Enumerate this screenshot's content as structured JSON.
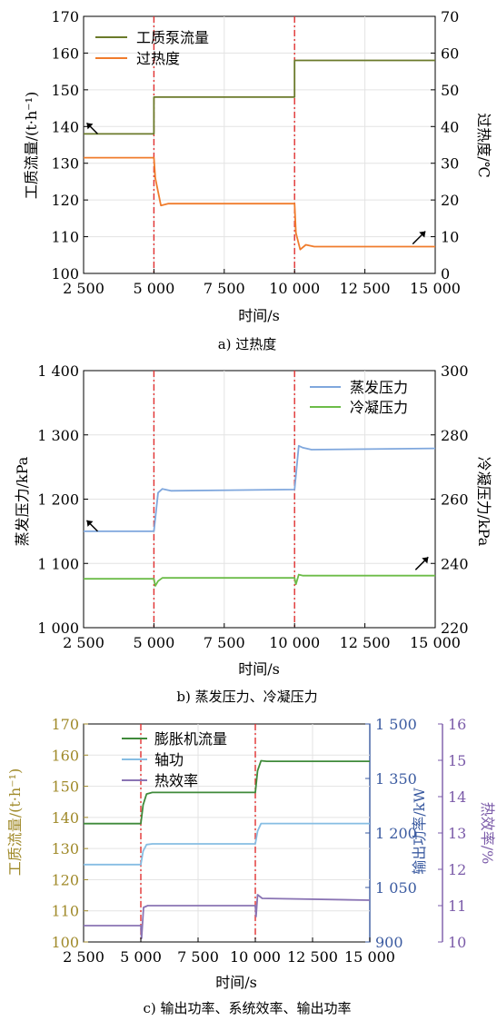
{
  "colors": {
    "pump_flow": "#6b7a2a",
    "superheat": "#f07c2c",
    "evap_pressure": "#7fa7dd",
    "cond_pressure": "#6cbc48",
    "expander_flow": "#3f8a3a",
    "shaft_power": "#86bde3",
    "thermal_eff": "#8a74b4",
    "step_marker": "#e03030",
    "left_axis_c": "#a08a2a",
    "right_axis_c1": "#3a5aa0",
    "right_axis_c2": "#7a5aa8"
  },
  "icons": {
    "trend_arrow": "arrow-icon"
  },
  "chart_data": [
    {
      "type": "line",
      "caption": "a) 过热度",
      "xlabel": "时间/s",
      "ylabel_left": "工质流量/(t·h⁻¹)",
      "ylabel_right": "过热度/℃",
      "xlim": [
        2500,
        15000
      ],
      "ylim_left": [
        100,
        170
      ],
      "ylim_right": [
        0,
        70
      ],
      "x_ticks": [
        2500,
        5000,
        7500,
        10000,
        12500,
        15000
      ],
      "x_tick_labels": [
        "2 500",
        "5 000",
        "7 500",
        "10 000",
        "12 500",
        "15 000"
      ],
      "y_ticks_left": [
        "100",
        "110",
        "120",
        "130",
        "140",
        "150",
        "160",
        "170"
      ],
      "y_ticks_right": [
        "0",
        "10",
        "20",
        "30",
        "40",
        "50",
        "60",
        "70"
      ],
      "vlines": [
        5000,
        10000
      ],
      "legend": [
        "工质泵流量",
        "过热度"
      ],
      "series": [
        {
          "name": "工质泵流量",
          "axis": "left",
          "color": "pump_flow",
          "x": [
            2500,
            5000,
            5000,
            10000,
            10000,
            15000
          ],
          "y": [
            138,
            138,
            148,
            148,
            158,
            158
          ]
        },
        {
          "name": "过热度",
          "axis": "right",
          "color": "superheat",
          "x": [
            2500,
            5000,
            5050,
            5250,
            5500,
            10000,
            10050,
            10200,
            10400,
            10700,
            15000
          ],
          "y": [
            31.5,
            31.5,
            26,
            18.5,
            19,
            19,
            11,
            6.5,
            7.8,
            7.3,
            7.3
          ]
        }
      ],
      "arrows": [
        {
          "x": 3000,
          "y": 138,
          "axis": "left",
          "dir": "up-left"
        },
        {
          "x": 14200,
          "y": 8,
          "axis": "right",
          "dir": "up-right"
        }
      ]
    },
    {
      "type": "line",
      "caption": "b) 蒸发压力、冷凝压力",
      "xlabel": "时间/s",
      "ylabel_left": "蒸发压力/kPa",
      "ylabel_right": "冷凝压力/kPa",
      "xlim": [
        2500,
        15000
      ],
      "ylim_left": [
        1000,
        1400
      ],
      "ylim_right": [
        220,
        300
      ],
      "x_ticks": [
        2500,
        5000,
        7500,
        10000,
        12500,
        15000
      ],
      "x_tick_labels": [
        "2 500",
        "5 000",
        "7 500",
        "10 000",
        "12 500",
        "15 000"
      ],
      "y_ticks_left": [
        "1 000",
        "1 100",
        "1 200",
        "1 300",
        "1 400"
      ],
      "y_ticks_right": [
        "220",
        "240",
        "260",
        "280",
        "300"
      ],
      "vlines": [
        5000,
        10000
      ],
      "legend": [
        "蒸发压力",
        "冷凝压力"
      ],
      "series": [
        {
          "name": "蒸发压力",
          "axis": "left",
          "color": "evap_pressure",
          "x": [
            2500,
            5000,
            5150,
            5300,
            5600,
            10000,
            10150,
            10300,
            10600,
            15000
          ],
          "y": [
            1150,
            1150,
            1210,
            1216,
            1213,
            1215,
            1283,
            1280,
            1277,
            1279
          ]
        },
        {
          "name": "冷凝压力",
          "axis": "right",
          "color": "cond_pressure",
          "x": [
            2500,
            5000,
            5050,
            5150,
            5300,
            10000,
            10050,
            10150,
            10300,
            15000
          ],
          "y": [
            235.2,
            235.2,
            233,
            234.5,
            235.5,
            235.5,
            233.5,
            236.5,
            236.2,
            236.2
          ]
        }
      ],
      "arrows": [
        {
          "x": 3000,
          "y": 1150,
          "axis": "left",
          "dir": "up-left"
        },
        {
          "x": 14300,
          "y": 238,
          "axis": "right",
          "dir": "up-right"
        }
      ]
    },
    {
      "type": "line",
      "caption": "c) 输出功率、系统效率、输出功率",
      "xlabel": "时间/s",
      "ylabel_left": "工质流量/(t·h⁻¹)",
      "ylabel_right1": "输出功率/kW",
      "ylabel_right2": "热效率/%",
      "xlim": [
        2500,
        15000
      ],
      "ylim_left": [
        100,
        170
      ],
      "ylim_right1": [
        900,
        1500
      ],
      "ylim_right2": [
        10,
        16
      ],
      "x_ticks": [
        2500,
        5000,
        7500,
        10000,
        12500,
        15000
      ],
      "x_tick_labels": [
        "2 500",
        "5 000",
        "7 500",
        "10 000",
        "12 500",
        "15 000"
      ],
      "y_ticks_left": [
        "100",
        "110",
        "120",
        "130",
        "140",
        "150",
        "160",
        "170"
      ],
      "y_ticks_right1": [
        "900",
        "1 050",
        "1 200",
        "1 350",
        "1 500"
      ],
      "y_ticks_right2": [
        "10",
        "11",
        "12",
        "13",
        "14",
        "15",
        "16"
      ],
      "vlines": [
        5000,
        10000
      ],
      "legend": [
        "膨胀机流量",
        "轴功",
        "热效率"
      ],
      "series": [
        {
          "name": "膨胀机流量",
          "axis": "left",
          "color": "expander_flow",
          "x": [
            2500,
            5000,
            5100,
            5250,
            5500,
            10000,
            10100,
            10250,
            10500,
            15000
          ],
          "y": [
            138,
            138,
            144,
            147.5,
            148,
            148,
            155,
            158.2,
            158,
            158
          ]
        },
        {
          "name": "轴功",
          "axis": "right1",
          "color": "shaft_power",
          "x": [
            2500,
            5000,
            5100,
            5250,
            5500,
            10000,
            10100,
            10250,
            10500,
            15000
          ],
          "y": [
            1113,
            1113,
            1150,
            1168,
            1170,
            1170,
            1205,
            1226,
            1226,
            1226
          ]
        },
        {
          "name": "热效率",
          "axis": "right2",
          "color": "thermal_eff",
          "x": [
            2500,
            5000,
            5030,
            5120,
            5300,
            10000,
            10030,
            10100,
            10300,
            15000
          ],
          "y": [
            10.45,
            10.45,
            10.1,
            10.95,
            11.0,
            11.0,
            10.7,
            11.3,
            11.2,
            11.15
          ]
        }
      ],
      "arrows": []
    }
  ]
}
